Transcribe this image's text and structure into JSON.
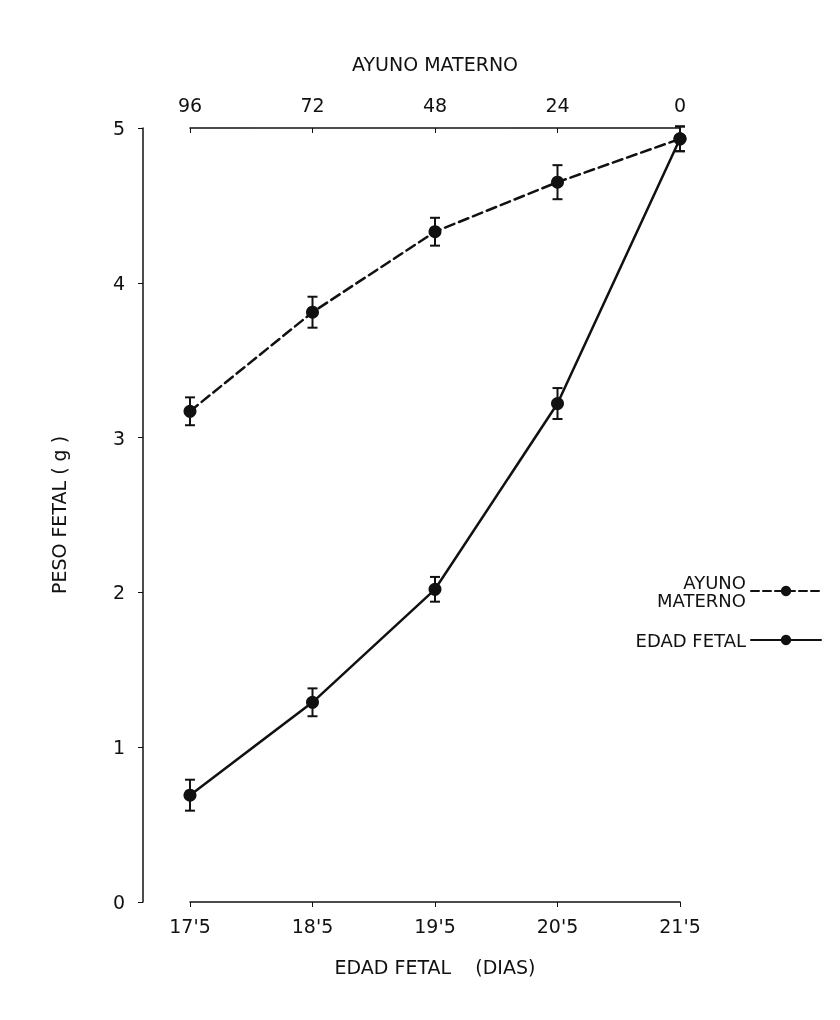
{
  "chart_data": {
    "type": "line",
    "xlabel": "EDAD FETAL    (DIAS)",
    "ylabel": "PESO FETAL ( g )",
    "x2label": "AYUNO MATERNO",
    "categories": [
      "17'5",
      "18'5",
      "19'5",
      "20'5",
      "21'5"
    ],
    "x2lim": [
      96,
      0
    ],
    "x2ticks": [
      96,
      72,
      48,
      24,
      0
    ],
    "ylim": [
      0,
      5
    ],
    "yticks": [
      0,
      1,
      2,
      3,
      4,
      5
    ],
    "series": [
      {
        "name": "AYUNO\nMATERNO",
        "color": "#111111",
        "axis": "x2",
        "line_style": "dashed",
        "x": [
          96,
          72,
          48,
          24,
          0
        ],
        "values": [
          3.17,
          3.81,
          4.33,
          4.65,
          4.93
        ],
        "errors": [
          0.09,
          0.1,
          0.09,
          0.11,
          0.08
        ]
      },
      {
        "name": "EDAD FETAL",
        "color": "#111111",
        "line_style": "solid",
        "values": [
          0.69,
          1.29,
          2.02,
          3.22,
          4.93
        ],
        "errors": [
          0.1,
          0.09,
          0.08,
          0.1,
          0.08
        ]
      }
    ],
    "marker": "circle",
    "grid": false,
    "legend": "right"
  }
}
